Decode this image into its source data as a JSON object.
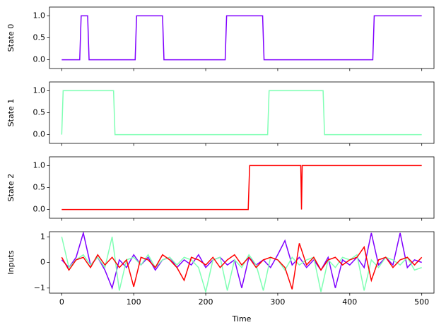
{
  "chart_data": [
    {
      "type": "line",
      "ylabel": "State 0",
      "x": [
        0,
        25,
        27,
        36,
        38,
        102,
        104,
        140,
        142,
        227,
        229,
        279,
        281,
        432,
        434,
        500
      ],
      "series": [
        {
          "color": "#8000ff",
          "values": [
            0,
            0,
            1,
            1,
            0,
            0,
            1,
            1,
            0,
            0,
            1,
            1,
            0,
            0,
            1,
            1
          ]
        }
      ],
      "xlim": [
        -17,
        517
      ],
      "xticks": [
        0,
        100,
        200,
        300,
        400,
        500
      ],
      "ylim": [
        -0.2,
        1.2
      ],
      "yticks": [
        {
          "value": 0,
          "label": "0.0"
        },
        {
          "value": 0.5,
          "label": "0.5"
        },
        {
          "value": 1,
          "label": "1.0"
        }
      ]
    },
    {
      "type": "line",
      "ylabel": "State 1",
      "x": [
        0,
        2,
        72,
        74,
        286,
        288,
        363,
        365,
        500
      ],
      "series": [
        {
          "color": "#80ffb4",
          "values": [
            0,
            1,
            1,
            0,
            0,
            1,
            1,
            0,
            0
          ]
        }
      ],
      "xlim": [
        -17,
        517
      ],
      "xticks": [
        0,
        100,
        200,
        300,
        400,
        500
      ],
      "ylim": [
        -0.2,
        1.2
      ],
      "yticks": [
        {
          "value": 0,
          "label": "0.0"
        },
        {
          "value": 0.5,
          "label": "0.5"
        },
        {
          "value": 1,
          "label": "1.0"
        }
      ]
    },
    {
      "type": "line",
      "ylabel": "State 2",
      "x": [
        0,
        259,
        261,
        332,
        333,
        334,
        500
      ],
      "series": [
        {
          "color": "#ff0000",
          "values": [
            0,
            0,
            1,
            1,
            0,
            1,
            1
          ]
        }
      ],
      "xlim": [
        -17,
        517
      ],
      "xticks": [
        0,
        100,
        200,
        300,
        400,
        500
      ],
      "ylim": [
        -0.2,
        1.2
      ],
      "yticks": [
        {
          "value": 0,
          "label": "0.0"
        },
        {
          "value": 0.5,
          "label": "0.5"
        },
        {
          "value": 1,
          "label": "1.0"
        }
      ]
    },
    {
      "type": "line",
      "ylabel": "Inputs",
      "xlabel": "Time",
      "x": [
        0,
        10,
        20,
        30,
        40,
        50,
        60,
        70,
        80,
        90,
        100,
        110,
        120,
        130,
        140,
        150,
        160,
        170,
        180,
        190,
        200,
        210,
        220,
        230,
        240,
        250,
        260,
        270,
        280,
        290,
        300,
        310,
        320,
        330,
        340,
        350,
        360,
        370,
        380,
        390,
        400,
        410,
        420,
        430,
        440,
        450,
        460,
        470,
        480,
        490,
        500
      ],
      "series": [
        {
          "color": "#8000ff",
          "values": [
            0.1,
            -0.2,
            0.2,
            1.15,
            -0.1,
            0.2,
            -0.3,
            -1.0,
            0.1,
            -0.2,
            0.3,
            -0.1,
            0.2,
            -0.3,
            0.1,
            0.2,
            -0.2,
            0.1,
            -0.1,
            0.3,
            -0.2,
            0.1,
            0.2,
            -0.1,
            0.1,
            -1.0,
            0.2,
            -0.1,
            0.1,
            -0.2,
            0.3,
            0.85,
            -0.1,
            0.2,
            -0.2,
            0.1,
            -0.3,
            0.2,
            -1.0,
            0.1,
            -0.1,
            0.2,
            -0.2,
            1.15,
            -0.1,
            0.2,
            -0.1,
            1.15,
            -0.2,
            0.1,
            0.0
          ]
        },
        {
          "color": "#80ffb4",
          "values": [
            1.0,
            -0.2,
            0.1,
            0.3,
            -0.1,
            0.2,
            -0.2,
            1.0,
            -1.1,
            0.1,
            0.2,
            -0.1,
            0.3,
            -0.2,
            0.1,
            0.2,
            -0.1,
            0.2,
            0.1,
            -0.2,
            -1.15,
            0.1,
            0.2,
            -1.1,
            0.1,
            -0.2,
            0.3,
            -0.1,
            -1.1,
            0.2,
            0.1,
            -0.3,
            0.2,
            -0.1,
            0.1,
            0.2,
            -1.15,
            0.1,
            -0.2,
            0.2,
            0.1,
            0.3,
            -1.1,
            0.1,
            -0.2,
            0.2,
            0.1,
            -0.1,
            0.2,
            -0.3,
            -0.2
          ]
        },
        {
          "color": "#ff0000",
          "values": [
            0.2,
            -0.3,
            0.1,
            0.2,
            -0.2,
            0.3,
            -0.1,
            0.2,
            -0.2,
            0.1,
            -0.95,
            0.2,
            0.1,
            -0.2,
            0.3,
            0.1,
            -0.2,
            -0.7,
            0.2,
            0.1,
            -0.1,
            0.2,
            -0.2,
            0.1,
            0.3,
            -0.1,
            0.2,
            -0.2,
            0.1,
            0.2,
            0.1,
            -0.2,
            -1.05,
            0.75,
            -0.1,
            0.2,
            -0.3,
            0.1,
            0.2,
            -0.1,
            0.1,
            0.2,
            0.6,
            -0.7,
            0.1,
            0.2,
            -0.2,
            0.1,
            0.2,
            -0.1,
            0.2
          ]
        }
      ],
      "xlim": [
        -17,
        517
      ],
      "xticks": [
        0,
        100,
        200,
        300,
        400,
        500
      ],
      "ylim": [
        -1.2,
        1.2
      ],
      "yticks": [
        {
          "value": -1,
          "label": "−1"
        },
        0,
        1
      ]
    }
  ]
}
